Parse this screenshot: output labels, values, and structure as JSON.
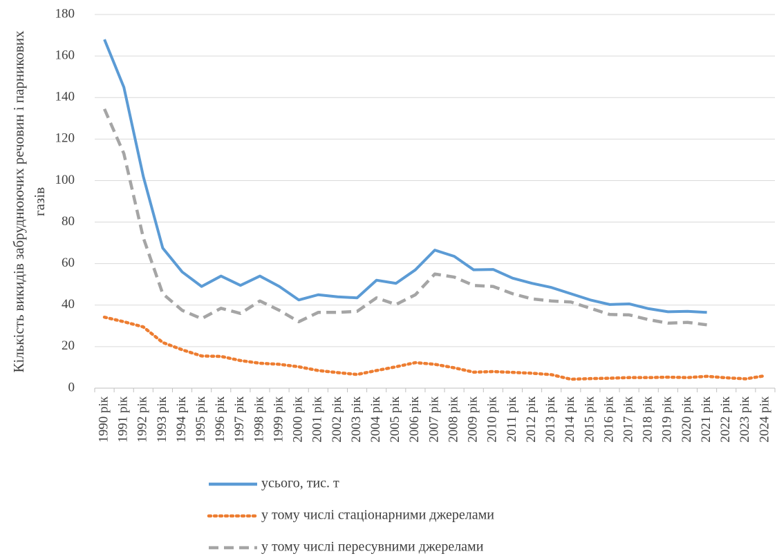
{
  "chart_data": {
    "type": "line",
    "ylabel": [
      "Кількість викидів забруднюючих речовин і парникових",
      "газів"
    ],
    "categories": [
      "1990 рік",
      "1991 рік",
      "1992 рік",
      "1993 рік",
      "1994 рік",
      "1995 рік",
      "1996 рік",
      "1997 рік",
      "1998 рік",
      "1999 рік",
      "2000 рік",
      "2001 рік",
      "2002 рік",
      "2003 рік",
      "2004 рік",
      "2005 рік",
      "2006 рік",
      "2007 рік",
      "2008 рік",
      "2009 рік",
      "2010 рік",
      "2011 рік",
      "2012 рік",
      "2013 рік",
      "2014 рік",
      "2015 рік",
      "2016 рік",
      "2017 рік",
      "2018 рік",
      "2019 рік",
      "2020 рік",
      "2021 рік",
      "2022 рік",
      "2023 рік",
      "2024 рік"
    ],
    "series": [
      {
        "name": "усього, тис. т",
        "color": "#5b9bd5",
        "style": "solid",
        "values": [
          168,
          145,
          102,
          67.5,
          56,
          49,
          54,
          49.5,
          54,
          49,
          42.5,
          45,
          44,
          43.5,
          52,
          50.5,
          57,
          66.5,
          63.5,
          57,
          57.2,
          53,
          50.5,
          48.5,
          45.5,
          42.5,
          40.3,
          40.6,
          38.3,
          36.8,
          37,
          36.5,
          null,
          null,
          null
        ]
      },
      {
        "name": "у тому числі стаціонарними джерелами",
        "color": "#ed7d31",
        "style": "dotted",
        "values": [
          34.2,
          32,
          29.5,
          22,
          18.5,
          15.5,
          15.3,
          13.3,
          12,
          11.5,
          10.3,
          8.5,
          7.5,
          6.6,
          8.5,
          10.3,
          12.3,
          11.5,
          9.8,
          7.7,
          8,
          7.6,
          7.2,
          6.5,
          4.3,
          4.6,
          4.8,
          5.1,
          5.1,
          5.3,
          5.1,
          5.7,
          5,
          4.5,
          6
        ]
      },
      {
        "name": "у тому числі пересувними джерелами",
        "color": "#a5a5a5",
        "style": "dashed",
        "values": [
          134.5,
          113,
          72.5,
          45.5,
          37.5,
          33.5,
          38.5,
          36,
          42,
          37.5,
          32,
          36.5,
          36.5,
          37,
          43.5,
          40.3,
          45,
          55,
          53.5,
          49.5,
          49,
          45.5,
          43,
          42,
          41.5,
          38.5,
          35.5,
          35.3,
          33,
          31.3,
          31.7,
          30.5,
          null,
          null,
          null
        ]
      }
    ],
    "ylim": [
      0,
      180
    ],
    "yticks": [
      0,
      20,
      40,
      60,
      80,
      100,
      120,
      140,
      160,
      180
    ],
    "grid": true
  }
}
